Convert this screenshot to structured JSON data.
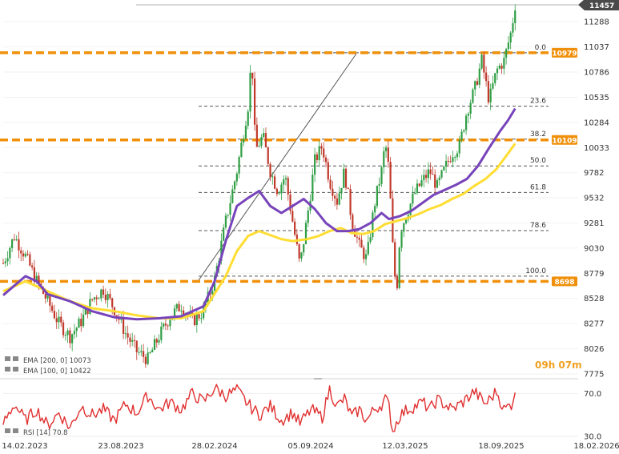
{
  "chart_data": {
    "type": "candlestick",
    "price_axis": {
      "ticks": [
        "11288",
        "11037",
        "10786",
        "10535",
        "10284",
        "10033",
        "9782",
        "9532",
        "9281",
        "9030",
        "8779",
        "8528",
        "8277",
        "8026",
        "7775"
      ],
      "range": [
        7775,
        11560
      ]
    },
    "time_axis": {
      "ticks": [
        "14.02.2023",
        "23.08.2023",
        "28.02.2024",
        "05.09.2024",
        "12.03.2025",
        "18.09.2025",
        "18.02.2026"
      ]
    },
    "last_price": "11457",
    "levels": [
      {
        "tag": "10979",
        "value": 10979,
        "color": "#f0900a"
      },
      {
        "tag": "10109",
        "value": 10109,
        "color": "#f0900a"
      },
      {
        "tag": "8698",
        "value": 8698,
        "color": "#f0900a"
      }
    ],
    "fibonacci": [
      {
        "label": "0.0",
        "value": 10979
      },
      {
        "label": "23.6",
        "value": 10446
      },
      {
        "label": "38.2",
        "value": 10117
      },
      {
        "label": "50.0",
        "value": 9850
      },
      {
        "label": "61.8",
        "value": 9585
      },
      {
        "label": "78.6",
        "value": 9205
      },
      {
        "label": "100.0",
        "value": 8750
      }
    ],
    "price_path": [
      [
        0,
        8880
      ],
      [
        3,
        9150
      ],
      [
        6,
        8950
      ],
      [
        9,
        8700
      ],
      [
        12,
        8500
      ],
      [
        15,
        8280
      ],
      [
        18,
        8150
      ],
      [
        21,
        8300
      ],
      [
        24,
        8520
      ],
      [
        27,
        8620
      ],
      [
        30,
        8420
      ],
      [
        33,
        8180
      ],
      [
        36,
        8000
      ],
      [
        39,
        7920
      ],
      [
        42,
        8150
      ],
      [
        45,
        8350
      ],
      [
        48,
        8460
      ],
      [
        51,
        8300
      ],
      [
        54,
        8400
      ],
      [
        57,
        8720
      ],
      [
        60,
        9300
      ],
      [
        63,
        9800
      ],
      [
        66,
        10450
      ],
      [
        67,
        10960
      ],
      [
        68,
        10000
      ],
      [
        70,
        10150
      ],
      [
        72,
        9800
      ],
      [
        74,
        9600
      ],
      [
        76,
        9750
      ],
      [
        78,
        9300
      ],
      [
        80,
        8850
      ],
      [
        82,
        9350
      ],
      [
        84,
        9900
      ],
      [
        86,
        10050
      ],
      [
        88,
        9700
      ],
      [
        90,
        9500
      ],
      [
        92,
        9800
      ],
      [
        94,
        9300
      ],
      [
        96,
        9050
      ],
      [
        98,
        8920
      ],
      [
        100,
        9450
      ],
      [
        102,
        9800
      ],
      [
        103,
        10080
      ],
      [
        104,
        9800
      ],
      [
        105,
        9050
      ],
      [
        106,
        8550
      ],
      [
        107,
        9200
      ],
      [
        109,
        9400
      ],
      [
        111,
        9580
      ],
      [
        113,
        9700
      ],
      [
        115,
        9800
      ],
      [
        117,
        9640
      ],
      [
        119,
        9820
      ],
      [
        121,
        9980
      ],
      [
        123,
        10050
      ],
      [
        125,
        10400
      ],
      [
        127,
        10600
      ],
      [
        129,
        10900
      ],
      [
        131,
        10500
      ],
      [
        133,
        10800
      ],
      [
        135,
        10900
      ],
      [
        137,
        11200
      ],
      [
        138,
        11457
      ]
    ],
    "indicators": {
      "ema_200": {
        "name": "EMA [200, 0] 10073",
        "color": "#ffdd33",
        "points": [
          [
            0,
            8600
          ],
          [
            6,
            8700
          ],
          [
            12,
            8600
          ],
          [
            18,
            8500
          ],
          [
            24,
            8430
          ],
          [
            30,
            8400
          ],
          [
            36,
            8360
          ],
          [
            42,
            8330
          ],
          [
            48,
            8330
          ],
          [
            54,
            8400
          ],
          [
            60,
            8750
          ],
          [
            63,
            9000
          ],
          [
            66,
            9150
          ],
          [
            69,
            9200
          ],
          [
            72,
            9160
          ],
          [
            75,
            9120
          ],
          [
            78,
            9100
          ],
          [
            82,
            9120
          ],
          [
            85,
            9150
          ],
          [
            88,
            9200
          ],
          [
            91,
            9230
          ],
          [
            94,
            9180
          ],
          [
            97,
            9170
          ],
          [
            100,
            9200
          ],
          [
            103,
            9270
          ],
          [
            106,
            9300
          ],
          [
            109,
            9330
          ],
          [
            112,
            9370
          ],
          [
            115,
            9420
          ],
          [
            118,
            9460
          ],
          [
            121,
            9520
          ],
          [
            124,
            9570
          ],
          [
            127,
            9650
          ],
          [
            130,
            9720
          ],
          [
            133,
            9820
          ],
          [
            136,
            9970
          ],
          [
            138,
            10073
          ]
        ]
      },
      "ema_100": {
        "name": "EMA [100, 0] 10422",
        "color": "#7744bb",
        "points": [
          [
            0,
            8560
          ],
          [
            6,
            8750
          ],
          [
            9,
            8700
          ],
          [
            12,
            8570
          ],
          [
            18,
            8500
          ],
          [
            24,
            8400
          ],
          [
            30,
            8340
          ],
          [
            36,
            8320
          ],
          [
            42,
            8330
          ],
          [
            48,
            8350
          ],
          [
            54,
            8450
          ],
          [
            57,
            8700
          ],
          [
            60,
            9100
          ],
          [
            63,
            9450
          ],
          [
            66,
            9530
          ],
          [
            69,
            9600
          ],
          [
            72,
            9450
          ],
          [
            75,
            9380
          ],
          [
            78,
            9450
          ],
          [
            81,
            9520
          ],
          [
            84,
            9420
          ],
          [
            87,
            9280
          ],
          [
            90,
            9200
          ],
          [
            93,
            9200
          ],
          [
            96,
            9220
          ],
          [
            99,
            9280
          ],
          [
            102,
            9380
          ],
          [
            104,
            9320
          ],
          [
            107,
            9350
          ],
          [
            110,
            9400
          ],
          [
            113,
            9480
          ],
          [
            116,
            9560
          ],
          [
            119,
            9610
          ],
          [
            122,
            9660
          ],
          [
            125,
            9720
          ],
          [
            128,
            9850
          ],
          [
            131,
            10030
          ],
          [
            134,
            10200
          ],
          [
            136,
            10300
          ],
          [
            138,
            10422
          ]
        ]
      },
      "rsi": {
        "name": "RSI [14] 70.8",
        "color": "#e03030",
        "range": [
          30,
          80
        ],
        "ticks": [
          "70.0",
          "30.0"
        ],
        "points": [
          [
            0,
            42
          ],
          [
            3,
            60
          ],
          [
            6,
            45
          ],
          [
            9,
            55
          ],
          [
            12,
            40
          ],
          [
            15,
            52
          ],
          [
            18,
            38
          ],
          [
            21,
            58
          ],
          [
            24,
            50
          ],
          [
            27,
            55
          ],
          [
            30,
            45
          ],
          [
            33,
            60
          ],
          [
            36,
            52
          ],
          [
            39,
            68
          ],
          [
            42,
            55
          ],
          [
            45,
            62
          ],
          [
            48,
            55
          ],
          [
            51,
            70
          ],
          [
            54,
            62
          ],
          [
            57,
            75
          ],
          [
            60,
            68
          ],
          [
            63,
            73
          ],
          [
            66,
            60
          ],
          [
            69,
            50
          ],
          [
            72,
            58
          ],
          [
            75,
            45
          ],
          [
            78,
            52
          ],
          [
            80,
            42
          ],
          [
            83,
            55
          ],
          [
            86,
            48
          ],
          [
            88,
            74
          ],
          [
            90,
            58
          ],
          [
            92,
            65
          ],
          [
            94,
            48
          ],
          [
            96,
            55
          ],
          [
            98,
            45
          ],
          [
            100,
            55
          ],
          [
            102,
            60
          ],
          [
            103,
            65
          ],
          [
            104,
            58
          ],
          [
            105,
            35
          ],
          [
            107,
            50
          ],
          [
            109,
            55
          ],
          [
            111,
            58
          ],
          [
            113,
            62
          ],
          [
            115,
            55
          ],
          [
            117,
            64
          ],
          [
            119,
            60
          ],
          [
            121,
            55
          ],
          [
            124,
            62
          ],
          [
            127,
            72
          ],
          [
            130,
            60
          ],
          [
            133,
            72
          ],
          [
            135,
            55
          ],
          [
            137,
            60
          ],
          [
            138,
            70.8
          ]
        ]
      }
    },
    "countdown": "09h 07m"
  }
}
